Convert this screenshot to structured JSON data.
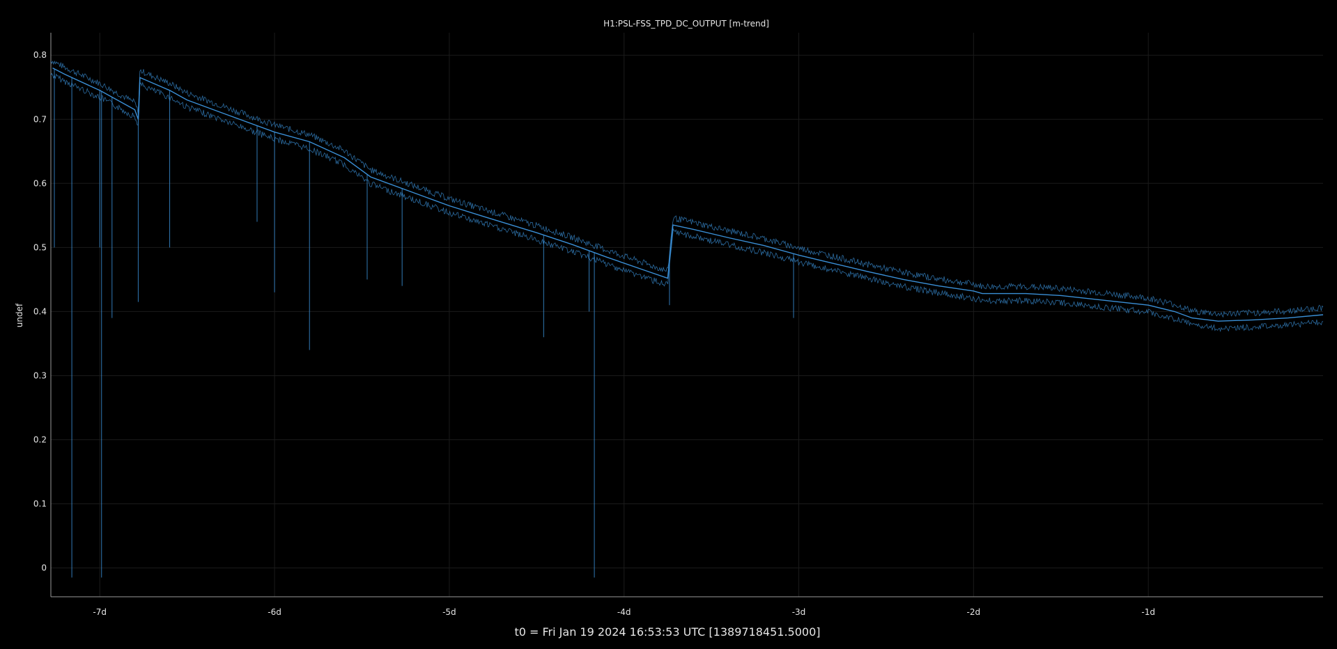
{
  "chart_data": {
    "type": "line",
    "title": "H1:PSL-FSS_TPD_DC_OUTPUT [m-trend]",
    "xlabel": "t0 = Fri Jan 19 2024 16:53:53 UTC [1389718451.5000]",
    "ylabel": "undef",
    "x_unit": "days",
    "xlim": [
      -7.28,
      0
    ],
    "ylim": [
      -0.045,
      0.835
    ],
    "x_ticks": [
      -7,
      -6,
      -5,
      -4,
      -3,
      -2,
      -1
    ],
    "x_tick_labels": [
      "-7d",
      "-6d",
      "-5d",
      "-4d",
      "-3d",
      "-2d",
      "-1d"
    ],
    "y_ticks": [
      0,
      0.1,
      0.2,
      0.3,
      0.4,
      0.5,
      0.6,
      0.7,
      0.8
    ],
    "y_tick_labels": [
      "0",
      "0.1",
      "0.2",
      "0.3",
      "0.4",
      "0.5",
      "0.6",
      "0.7",
      "0.8"
    ],
    "grid": true,
    "series": [
      {
        "name": "",
        "color": "#3a8fd6",
        "x": [
          -7.27,
          -7.2,
          -7.0,
          -6.9,
          -6.8,
          -6.78,
          -6.77,
          -6.6,
          -6.5,
          -6.3,
          -6.0,
          -5.8,
          -5.6,
          -5.45,
          -5.2,
          -5.0,
          -4.8,
          -4.5,
          -4.3,
          -4.1,
          -3.9,
          -3.75,
          -3.72,
          -3.6,
          -3.4,
          -3.2,
          -3.0,
          -2.8,
          -2.6,
          -2.4,
          -2.2,
          -2.0,
          -1.95,
          -1.7,
          -1.5,
          -1.3,
          -1.0,
          -0.85,
          -0.75,
          -0.6,
          -0.4,
          -0.2,
          0.0
        ],
        "y": [
          0.78,
          0.77,
          0.745,
          0.73,
          0.715,
          0.7,
          0.765,
          0.745,
          0.73,
          0.71,
          0.68,
          0.665,
          0.64,
          0.61,
          0.585,
          0.565,
          0.548,
          0.523,
          0.505,
          0.485,
          0.466,
          0.452,
          0.535,
          0.528,
          0.515,
          0.503,
          0.488,
          0.475,
          0.462,
          0.45,
          0.44,
          0.432,
          0.428,
          0.428,
          0.425,
          0.419,
          0.41,
          0.4,
          0.39,
          0.385,
          0.387,
          0.39,
          0.395
        ],
        "min_envelope_dips": [
          {
            "x": -7.26,
            "y": 0.5
          },
          {
            "x": -7.16,
            "y": -0.015
          },
          {
            "x": -7.0,
            "y": 0.5
          },
          {
            "x": -6.99,
            "y": -0.015
          },
          {
            "x": -6.93,
            "y": 0.39
          },
          {
            "x": -6.78,
            "y": 0.415
          },
          {
            "x": -6.6,
            "y": 0.5
          },
          {
            "x": -6.1,
            "y": 0.54
          },
          {
            "x": -6.0,
            "y": 0.43
          },
          {
            "x": -5.8,
            "y": 0.34
          },
          {
            "x": -5.47,
            "y": 0.45
          },
          {
            "x": -5.27,
            "y": 0.44
          },
          {
            "x": -4.46,
            "y": 0.36
          },
          {
            "x": -4.2,
            "y": 0.4
          },
          {
            "x": -4.17,
            "y": -0.015
          },
          {
            "x": -3.74,
            "y": 0.41
          },
          {
            "x": -3.03,
            "y": 0.39
          }
        ]
      }
    ]
  }
}
